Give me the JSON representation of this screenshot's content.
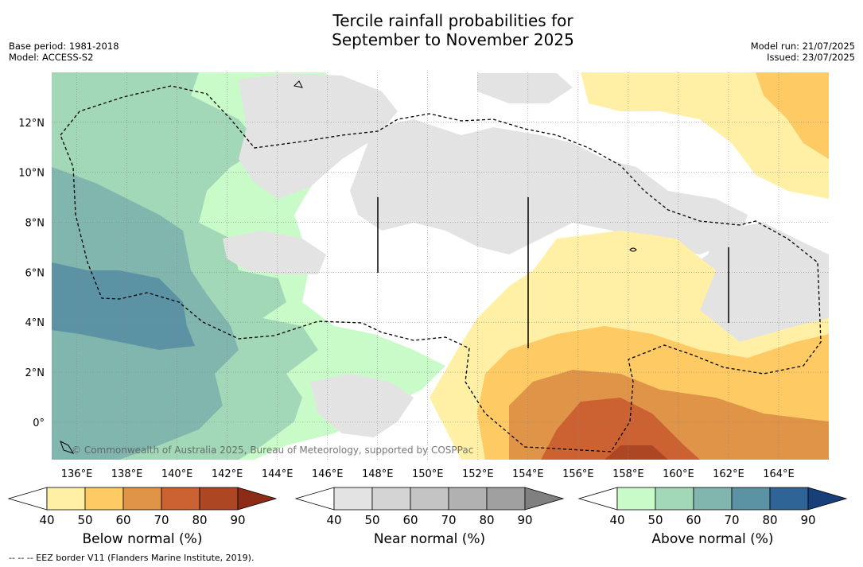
{
  "title_line1": "Tercile rainfall probabilities for",
  "title_line2": "September to November 2025",
  "meta": {
    "base_period": "Base period: 1981-2018",
    "model": "Model: ACCESS-S2",
    "model_run": "Model run: 21/07/2025",
    "issued": "Issued: 23/07/2025"
  },
  "watermark": "© Commonwealth of Australia 2025, Bureau of Meteorology, supported by COSPPac",
  "footnote": "-- -- -- EEZ border V11 (Flanders Marine Institute, 2019).",
  "map": {
    "lon_range": [
      135,
      166
    ],
    "lat_range": [
      -1.5,
      14
    ],
    "lon_ticks": [
      "136°E",
      "138°E",
      "140°E",
      "142°E",
      "144°E",
      "146°E",
      "148°E",
      "150°E",
      "152°E",
      "154°E",
      "156°E",
      "158°E",
      "160°E",
      "162°E",
      "164°E"
    ],
    "lat_ticks": [
      "0°",
      "2°N",
      "4°N",
      "6°N",
      "8°N",
      "10°N",
      "12°N"
    ]
  },
  "colorbars": [
    {
      "label": "Below normal (%)",
      "ticks": [
        "40",
        "50",
        "60",
        "70",
        "80",
        "90"
      ],
      "colors": [
        "#ffffff",
        "#fff0a6",
        "#fdca64",
        "#df9448",
        "#cc6232",
        "#ad4623",
        "#8c2c18"
      ]
    },
    {
      "label": "Near normal (%)",
      "ticks": [
        "40",
        "50",
        "60",
        "70",
        "80",
        "90"
      ],
      "colors": [
        "#ffffff",
        "#e3e3e3",
        "#d4d4d4",
        "#c4c4c4",
        "#b1b1b1",
        "#a0a0a0",
        "#808080"
      ]
    },
    {
      "label": "Above normal (%)",
      "ticks": [
        "40",
        "50",
        "60",
        "70",
        "80",
        "90"
      ],
      "colors": [
        "#ffffff",
        "#c9fbc9",
        "#a2d8b8",
        "#80b6ad",
        "#5b93a5",
        "#2f6496",
        "#173f7a"
      ]
    }
  ]
}
